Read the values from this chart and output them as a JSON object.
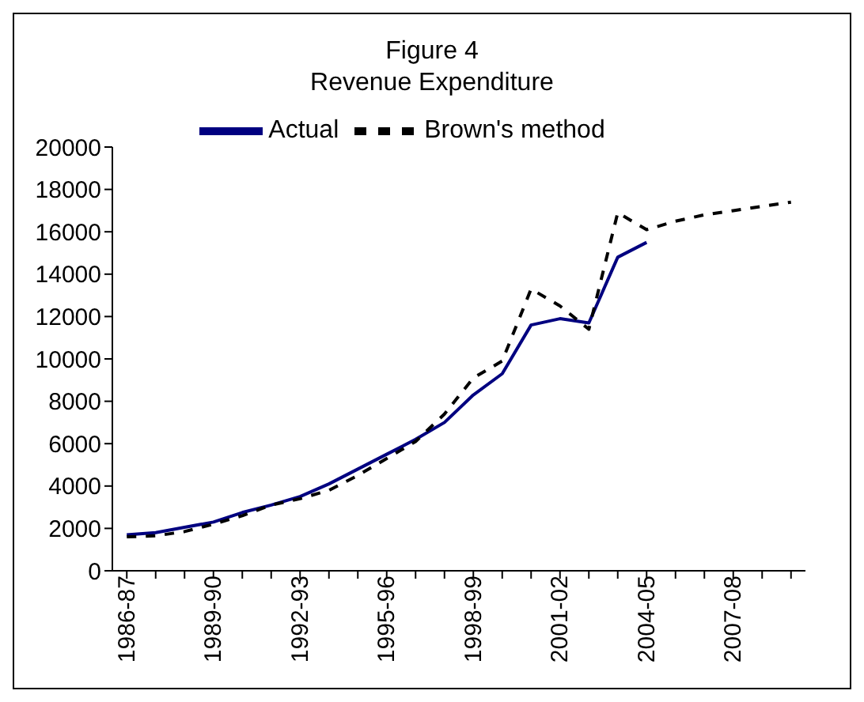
{
  "chart_data": {
    "type": "line",
    "title": "Figure 4",
    "subtitle": "Revenue Expenditure",
    "categories": [
      "1986-87",
      null,
      null,
      "1989-90",
      null,
      null,
      "1992-93",
      null,
      null,
      "1995-96",
      null,
      null,
      "1998-99",
      null,
      null,
      "2001-02",
      null,
      null,
      "2004-05",
      null,
      null,
      "2007-08",
      null,
      null
    ],
    "series": [
      {
        "name": "Actual",
        "color": "#000080",
        "line_style": "solid",
        "values": [
          1700,
          1800,
          2050,
          2300,
          2750,
          3100,
          3500,
          4100,
          4800,
          5500,
          6200,
          7000,
          8300,
          9300,
          11600,
          11900,
          11700,
          14800,
          15500,
          null,
          null,
          null,
          null,
          null
        ]
      },
      {
        "name": "Brown's method",
        "color": "#000000",
        "line_style": "dashed",
        "values": [
          1600,
          1650,
          1850,
          2200,
          2600,
          3100,
          3400,
          3800,
          4500,
          5300,
          6100,
          7400,
          9100,
          9900,
          13300,
          12500,
          11400,
          16900,
          16100,
          16500,
          16800,
          17000,
          17200,
          17400
        ]
      }
    ],
    "ylim": [
      0,
      20000
    ],
    "yticks": [
      0,
      2000,
      4000,
      6000,
      8000,
      10000,
      12000,
      14000,
      16000,
      18000,
      20000
    ],
    "grid": false,
    "legend": "top",
    "marker": "none"
  }
}
